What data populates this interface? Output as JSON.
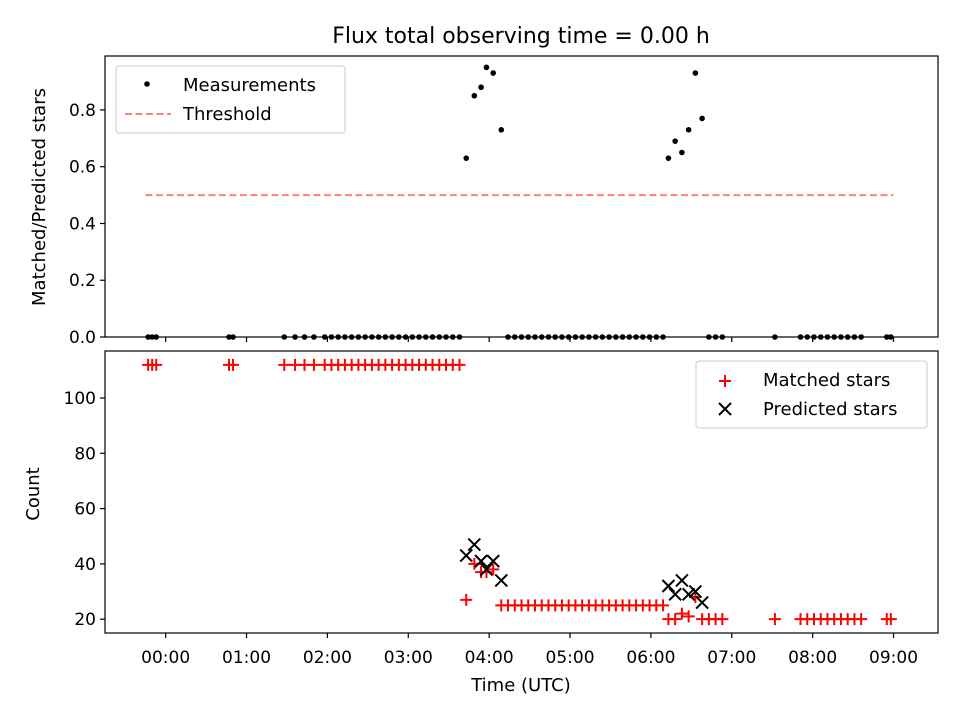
{
  "title": "Flux total observing time = 0.00 h",
  "chart_data": [
    {
      "type": "scatter",
      "ylabel": "Matched/Predicted stars",
      "xlabel": "",
      "xlim": [
        "23:15",
        "09:33"
      ],
      "ylim": [
        0,
        0.99
      ],
      "yticks": [
        0.0,
        0.2,
        0.4,
        0.6,
        0.8
      ],
      "ytick_labels": [
        "0.0",
        "0.2",
        "0.4",
        "0.6",
        "0.8"
      ],
      "legend_position": "upper left",
      "legend": [
        {
          "label": "Measurements",
          "marker": "dot",
          "color": "#000000"
        },
        {
          "label": "Threshold",
          "marker": "dashed-line",
          "color": "#ff7f7f"
        }
      ],
      "threshold": {
        "value": 0.5,
        "x_from": "23:45",
        "x_to": "09:00",
        "color": "#ff7f7f"
      },
      "series": [
        {
          "name": "Measurements",
          "color": "#000000",
          "points": [
            [
              "23:47",
              0
            ],
            [
              "23:50",
              0
            ],
            [
              "23:53",
              0
            ],
            [
              "00:47",
              0
            ],
            [
              "00:50",
              0
            ],
            [
              "01:28",
              0
            ],
            [
              "01:36",
              0
            ],
            [
              "01:43",
              0
            ],
            [
              "01:50",
              0
            ],
            [
              "01:58",
              0
            ],
            [
              "02:03",
              0
            ],
            [
              "02:08",
              0
            ],
            [
              "02:13",
              0
            ],
            [
              "02:18",
              0
            ],
            [
              "02:23",
              0
            ],
            [
              "02:28",
              0
            ],
            [
              "02:33",
              0
            ],
            [
              "02:38",
              0
            ],
            [
              "02:43",
              0
            ],
            [
              "02:48",
              0
            ],
            [
              "02:53",
              0
            ],
            [
              "02:58",
              0
            ],
            [
              "03:03",
              0
            ],
            [
              "03:08",
              0
            ],
            [
              "03:13",
              0
            ],
            [
              "03:18",
              0
            ],
            [
              "03:23",
              0
            ],
            [
              "03:28",
              0
            ],
            [
              "03:33",
              0
            ],
            [
              "03:38",
              0
            ],
            [
              "03:43",
              0.63
            ],
            [
              "03:49",
              0.85
            ],
            [
              "03:54",
              0.88
            ],
            [
              "03:58",
              0.95
            ],
            [
              "04:03",
              0.93
            ],
            [
              "04:09",
              0.73
            ],
            [
              "04:14",
              0
            ],
            [
              "04:19",
              0
            ],
            [
              "04:24",
              0
            ],
            [
              "04:29",
              0
            ],
            [
              "04:34",
              0
            ],
            [
              "04:39",
              0
            ],
            [
              "04:44",
              0
            ],
            [
              "04:49",
              0
            ],
            [
              "04:54",
              0
            ],
            [
              "04:59",
              0
            ],
            [
              "05:04",
              0
            ],
            [
              "05:09",
              0
            ],
            [
              "05:14",
              0
            ],
            [
              "05:19",
              0
            ],
            [
              "05:24",
              0
            ],
            [
              "05:29",
              0
            ],
            [
              "05:34",
              0
            ],
            [
              "05:39",
              0
            ],
            [
              "05:44",
              0
            ],
            [
              "05:49",
              0
            ],
            [
              "05:54",
              0
            ],
            [
              "05:59",
              0
            ],
            [
              "06:04",
              0
            ],
            [
              "06:09",
              0
            ],
            [
              "06:13",
              0.63
            ],
            [
              "06:18",
              0.69
            ],
            [
              "06:23",
              0.65
            ],
            [
              "06:28",
              0.73
            ],
            [
              "06:33",
              0.93
            ],
            [
              "06:38",
              0.77
            ],
            [
              "06:43",
              0
            ],
            [
              "06:48",
              0
            ],
            [
              "06:53",
              0
            ],
            [
              "07:32",
              0
            ],
            [
              "07:51",
              0
            ],
            [
              "07:56",
              0
            ],
            [
              "08:01",
              0
            ],
            [
              "08:06",
              0
            ],
            [
              "08:11",
              0
            ],
            [
              "08:16",
              0
            ],
            [
              "08:21",
              0
            ],
            [
              "08:26",
              0
            ],
            [
              "08:31",
              0
            ],
            [
              "08:36",
              0
            ],
            [
              "08:55",
              0
            ],
            [
              "08:58",
              0
            ]
          ]
        }
      ]
    },
    {
      "type": "scatter",
      "xlabel": "Time (UTC)",
      "ylabel": "Count",
      "xlim": [
        "23:15",
        "09:33"
      ],
      "ylim": [
        15,
        117
      ],
      "yticks": [
        20,
        40,
        60,
        80,
        100
      ],
      "xticks": [
        "00:00",
        "01:00",
        "02:00",
        "03:00",
        "04:00",
        "05:00",
        "06:00",
        "07:00",
        "08:00",
        "09:00"
      ],
      "legend_position": "upper right",
      "legend": [
        {
          "label": "Matched stars",
          "marker": "plus",
          "color": "#ff0000"
        },
        {
          "label": "Predicted stars",
          "marker": "x",
          "color": "#000000"
        }
      ],
      "series": [
        {
          "name": "Matched stars",
          "color": "#ff0000",
          "marker": "plus",
          "points": [
            [
              "23:47",
              112
            ],
            [
              "23:50",
              112
            ],
            [
              "23:53",
              112
            ],
            [
              "00:47",
              112
            ],
            [
              "00:50",
              112
            ],
            [
              "01:28",
              112
            ],
            [
              "01:36",
              112
            ],
            [
              "01:43",
              112
            ],
            [
              "01:50",
              112
            ],
            [
              "01:58",
              112
            ],
            [
              "02:03",
              112
            ],
            [
              "02:08",
              112
            ],
            [
              "02:13",
              112
            ],
            [
              "02:18",
              112
            ],
            [
              "02:23",
              112
            ],
            [
              "02:28",
              112
            ],
            [
              "02:33",
              112
            ],
            [
              "02:38",
              112
            ],
            [
              "02:43",
              112
            ],
            [
              "02:48",
              112
            ],
            [
              "02:53",
              112
            ],
            [
              "02:58",
              112
            ],
            [
              "03:03",
              112
            ],
            [
              "03:08",
              112
            ],
            [
              "03:13",
              112
            ],
            [
              "03:18",
              112
            ],
            [
              "03:23",
              112
            ],
            [
              "03:28",
              112
            ],
            [
              "03:33",
              112
            ],
            [
              "03:38",
              112
            ],
            [
              "03:43",
              27
            ],
            [
              "03:49",
              40
            ],
            [
              "03:54",
              37
            ],
            [
              "03:58",
              37
            ],
            [
              "04:03",
              38
            ],
            [
              "04:09",
              25
            ],
            [
              "04:14",
              25
            ],
            [
              "04:19",
              25
            ],
            [
              "04:24",
              25
            ],
            [
              "04:29",
              25
            ],
            [
              "04:34",
              25
            ],
            [
              "04:39",
              25
            ],
            [
              "04:44",
              25
            ],
            [
              "04:49",
              25
            ],
            [
              "04:54",
              25
            ],
            [
              "04:59",
              25
            ],
            [
              "05:04",
              25
            ],
            [
              "05:09",
              25
            ],
            [
              "05:14",
              25
            ],
            [
              "05:19",
              25
            ],
            [
              "05:24",
              25
            ],
            [
              "05:29",
              25
            ],
            [
              "05:34",
              25
            ],
            [
              "05:39",
              25
            ],
            [
              "05:44",
              25
            ],
            [
              "05:49",
              25
            ],
            [
              "05:54",
              25
            ],
            [
              "05:59",
              25
            ],
            [
              "06:04",
              25
            ],
            [
              "06:09",
              25
            ],
            [
              "06:13",
              20
            ],
            [
              "06:18",
              20
            ],
            [
              "06:23",
              22
            ],
            [
              "06:28",
              21
            ],
            [
              "06:33",
              28
            ],
            [
              "06:38",
              20
            ],
            [
              "06:43",
              20
            ],
            [
              "06:48",
              20
            ],
            [
              "06:53",
              20
            ],
            [
              "07:32",
              20
            ],
            [
              "07:51",
              20
            ],
            [
              "07:56",
              20
            ],
            [
              "08:01",
              20
            ],
            [
              "08:06",
              20
            ],
            [
              "08:11",
              20
            ],
            [
              "08:16",
              20
            ],
            [
              "08:21",
              20
            ],
            [
              "08:26",
              20
            ],
            [
              "08:31",
              20
            ],
            [
              "08:36",
              20
            ],
            [
              "08:55",
              20
            ],
            [
              "08:58",
              20
            ]
          ]
        },
        {
          "name": "Predicted stars",
          "color": "#000000",
          "marker": "x",
          "points": [
            [
              "03:43",
              43
            ],
            [
              "03:49",
              47
            ],
            [
              "03:54",
              41
            ],
            [
              "03:58",
              38
            ],
            [
              "04:03",
              41
            ],
            [
              "04:09",
              34
            ],
            [
              "06:13",
              32
            ],
            [
              "06:18",
              29
            ],
            [
              "06:23",
              34
            ],
            [
              "06:28",
              29
            ],
            [
              "06:33",
              30
            ],
            [
              "06:38",
              26
            ]
          ]
        }
      ]
    }
  ]
}
